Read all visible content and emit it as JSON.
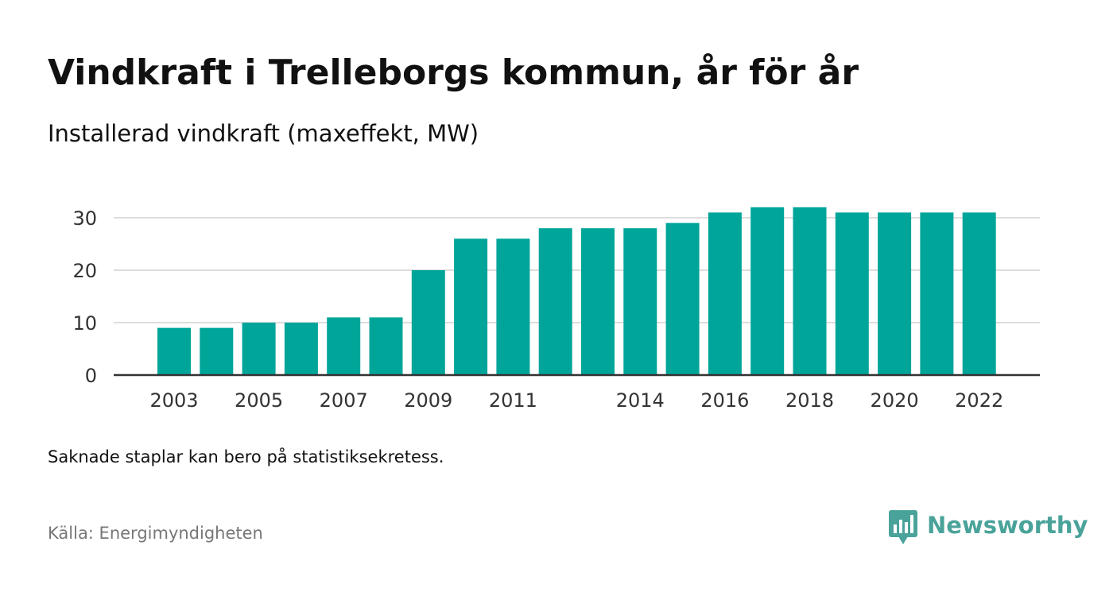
{
  "header": {
    "title": "Vindkraft i Trelleborgs kommun, år för år",
    "subtitle": "Installerad vindkraft (maxeffekt, MW)"
  },
  "footer": {
    "note": "Saknade staplar kan bero på statistiksekretess.",
    "source": "Källa: Energimyndigheten",
    "brand": "Newsworthy",
    "brand_icon": "newsworthy-logo-icon"
  },
  "colors": {
    "bar": "#00a59a",
    "gridline": "#dddddd",
    "axis": "#333333",
    "text": "#111111",
    "muted_text": "#777777",
    "brand": "#4aa39a"
  },
  "chart_data": {
    "type": "bar",
    "categories": [
      "2003",
      "2004",
      "2005",
      "2006",
      "2007",
      "2008",
      "2009",
      "2010",
      "2011",
      "2012",
      "2013",
      "2014",
      "2015",
      "2016",
      "2017",
      "2018",
      "2019",
      "2020",
      "2021",
      "2022"
    ],
    "values": [
      9,
      9,
      10,
      10,
      11,
      11,
      20,
      26,
      26,
      28,
      28,
      28,
      29,
      31,
      32,
      32,
      31,
      31,
      31,
      31
    ],
    "x_tick_labels": [
      "2003",
      "2005",
      "2007",
      "2009",
      "2011",
      "2014",
      "2016",
      "2018",
      "2020",
      "2022"
    ],
    "y_ticks": [
      0,
      10,
      20,
      30
    ],
    "ylim": [
      0,
      35
    ],
    "grid": true,
    "xlabel": "",
    "ylabel": ""
  }
}
